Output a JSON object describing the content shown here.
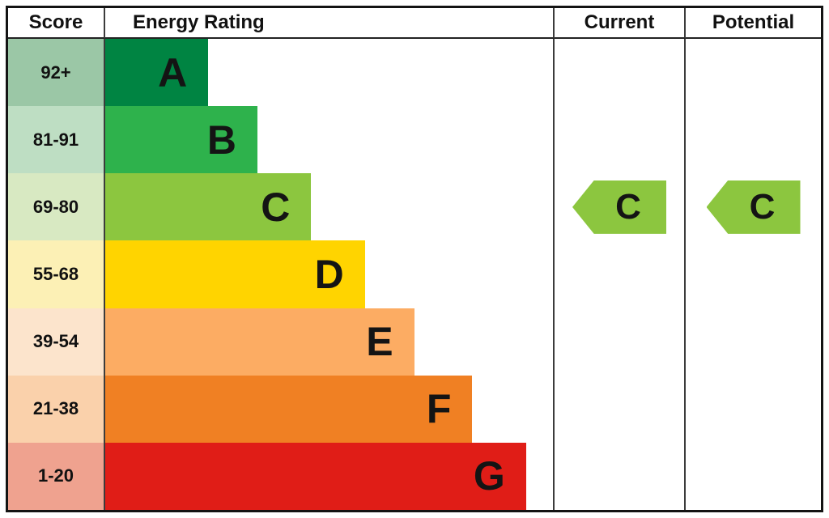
{
  "header": {
    "score": "Score",
    "energy_rating": "Energy Rating",
    "current": "Current",
    "potential": "Potential"
  },
  "chart_data": {
    "type": "bar",
    "title": "Energy Rating",
    "orientation": "horizontal",
    "columns": [
      "Score",
      "Energy Rating",
      "Current",
      "Potential"
    ],
    "bands": [
      {
        "score": "92+",
        "letter": "A",
        "bar_color": "#008442",
        "swatch_color": "#9bc7a6",
        "width_pct": 23
      },
      {
        "score": "81-91",
        "letter": "B",
        "bar_color": "#2eb24c",
        "swatch_color": "#bedec3",
        "width_pct": 34
      },
      {
        "score": "69-80",
        "letter": "C",
        "bar_color": "#8cc63f",
        "swatch_color": "#d8e9c2",
        "width_pct": 46
      },
      {
        "score": "55-68",
        "letter": "D",
        "bar_color": "#ffd400",
        "swatch_color": "#fcf0b5",
        "width_pct": 58
      },
      {
        "score": "39-54",
        "letter": "E",
        "bar_color": "#fcac63",
        "swatch_color": "#fce4cc",
        "width_pct": 69
      },
      {
        "score": "21-38",
        "letter": "F",
        "bar_color": "#f08023",
        "swatch_color": "#fad1ab",
        "width_pct": 82
      },
      {
        "score": "1-20",
        "letter": "G",
        "bar_color": "#e01d17",
        "swatch_color": "#efa28f",
        "width_pct": 94
      }
    ],
    "current": {
      "letter": "C",
      "band": "69-80",
      "arrow_color": "#8cc63f"
    },
    "potential": {
      "letter": "C",
      "band": "69-80",
      "arrow_color": "#8cc63f"
    }
  }
}
